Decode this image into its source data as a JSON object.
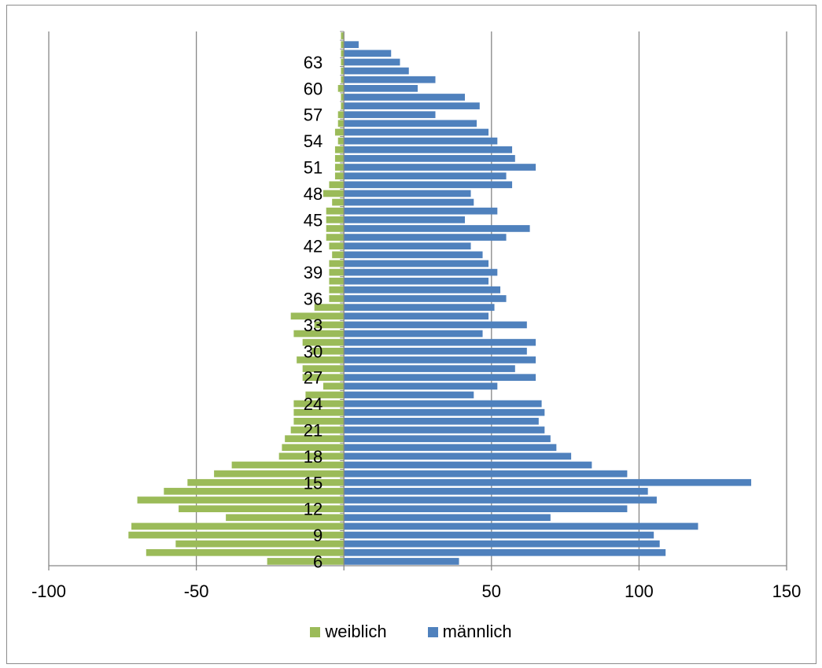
{
  "chart_data": {
    "type": "bar",
    "orientation": "horizontal",
    "stacked": "diverging",
    "title": "",
    "xlabel": "",
    "ylabel": "",
    "xlim": [
      -100,
      150
    ],
    "x_ticks": [
      -100,
      -50,
      0,
      50,
      100,
      150
    ],
    "x_tick_labels": [
      "-100",
      "-50",
      "",
      "50",
      "100",
      "150"
    ],
    "y_tick_labels": [
      "6",
      "9",
      "12",
      "15",
      "18",
      "21",
      "24",
      "27",
      "30",
      "33",
      "36",
      "39",
      "42",
      "45",
      "48",
      "51",
      "54",
      "57",
      "60",
      "63"
    ],
    "grid": "vertical",
    "legend_position": "bottom",
    "categories": [
      "6",
      "7",
      "8",
      "9",
      "10",
      "11",
      "12",
      "13",
      "14",
      "15",
      "16",
      "17",
      "18",
      "19",
      "20",
      "21",
      "22",
      "23",
      "24",
      "25",
      "26",
      "27",
      "28",
      "29",
      "30",
      "31",
      "32",
      "33",
      "34",
      "35",
      "36",
      "37",
      "38",
      "39",
      "40",
      "41",
      "42",
      "43",
      "44",
      "45",
      "46",
      "47",
      "48",
      "49",
      "50",
      "51",
      "52",
      "53",
      "54",
      "55",
      "56",
      "57",
      "58",
      "59",
      "60",
      "61",
      "62",
      "63",
      "64",
      "65",
      "66"
    ],
    "series": [
      {
        "name": "weiblich",
        "color": "#9bbb59",
        "values": [
          -26,
          -67,
          -57,
          -73,
          -72,
          -40,
          -56,
          -70,
          -61,
          -53,
          -44,
          -38,
          -22,
          -21,
          -20,
          -18,
          -17,
          -17,
          -17,
          -13,
          -7,
          -14,
          -14,
          -16,
          -11,
          -14,
          -17,
          -10,
          -18,
          -10,
          -5,
          -5,
          -5,
          -5,
          -5,
          -4,
          -5,
          -6,
          -6,
          -6,
          -6,
          -4,
          -7,
          -5,
          -3,
          -3,
          -3,
          -3,
          -2,
          -3,
          -2,
          -2,
          -1,
          -1,
          -2,
          -1,
          -1,
          -1,
          -1,
          -1,
          -1
        ]
      },
      {
        "name": "männlich",
        "color": "#4f81bd",
        "values": [
          39,
          109,
          107,
          105,
          120,
          70,
          96,
          106,
          103,
          138,
          96,
          84,
          77,
          72,
          70,
          68,
          66,
          68,
          67,
          44,
          52,
          65,
          58,
          65,
          62,
          65,
          47,
          62,
          49,
          51,
          55,
          53,
          49,
          52,
          49,
          47,
          43,
          55,
          63,
          41,
          52,
          44,
          43,
          57,
          55,
          65,
          58,
          57,
          52,
          49,
          45,
          31,
          46,
          41,
          25,
          31,
          22,
          19,
          16,
          5,
          0
        ]
      }
    ]
  }
}
